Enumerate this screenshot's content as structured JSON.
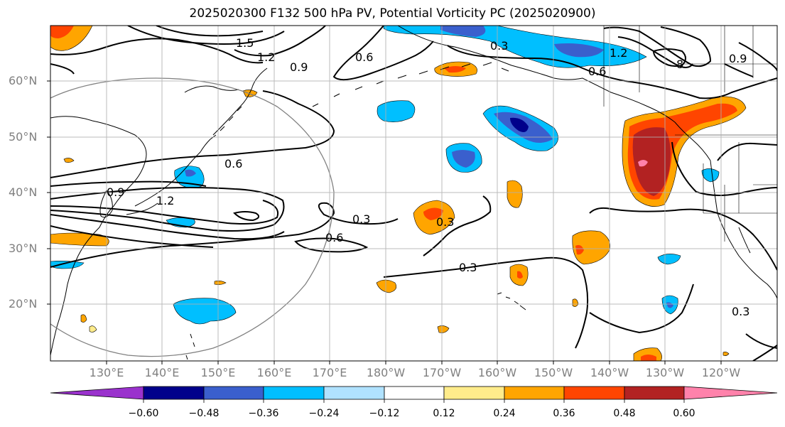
{
  "title": "2025020300 F132 500 hPa PV, Potential Vorticity PC (2025020900)",
  "lat_labels": [
    "60°N",
    "50°N",
    "40°N",
    "30°N",
    "20°N"
  ],
  "lon_labels": [
    "130°E",
    "140°E",
    "150°E",
    "160°E",
    "170°E",
    "180°W",
    "170°W",
    "160°W",
    "150°W",
    "140°W",
    "130°W",
    "120°W"
  ],
  "contour_labels": [
    "1.5",
    "1.2",
    "0.9",
    "0.6",
    "0.3",
    "0.6",
    "0.9",
    "1.2",
    "0.3",
    "0.6",
    "0.3",
    "0.3",
    "0.6",
    "1.2",
    "8",
    "0.9",
    "0.3"
  ],
  "colorbar": {
    "tick_labels": [
      "−0.60",
      "−0.48",
      "−0.36",
      "−0.24",
      "−0.12",
      "0.12",
      "0.24",
      "0.36",
      "0.48",
      "0.60"
    ],
    "colors": [
      "#9a32cd",
      "#00008b",
      "#3a5fcd",
      "#00bfff",
      "#b0e2ff",
      "#ffffff",
      "#ffec8b",
      "#ffa500",
      "#ff4500",
      "#b22222",
      "#ff82ab"
    ]
  }
}
